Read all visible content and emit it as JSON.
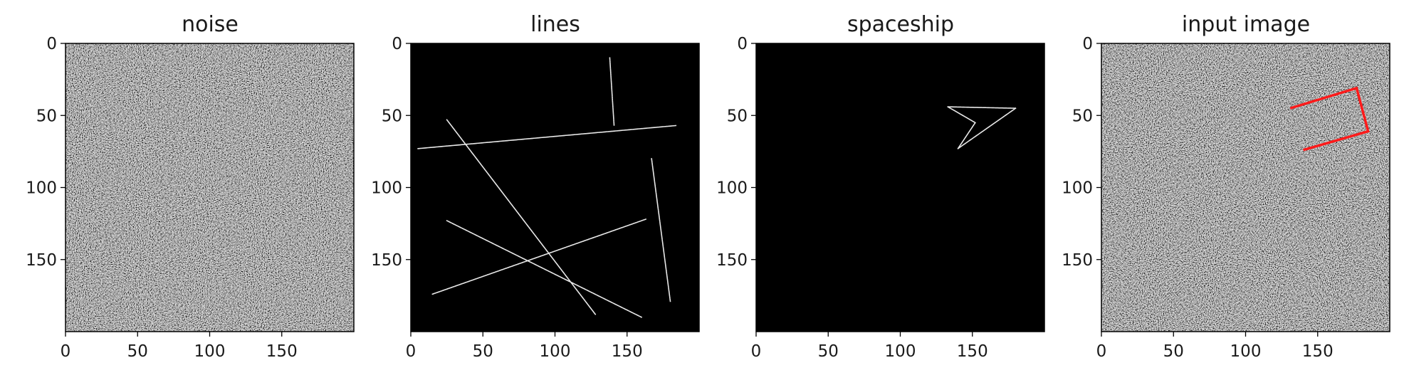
{
  "chart_data": [
    {
      "type": "heatmap",
      "title": "noise",
      "image": "random-gray-noise",
      "xlim": [
        0,
        200
      ],
      "ylim": [
        200,
        0
      ],
      "xticks": [
        0,
        50,
        100,
        150
      ],
      "yticks": [
        0,
        50,
        100,
        150
      ],
      "segments": [],
      "overlay": []
    },
    {
      "type": "heatmap",
      "title": "lines",
      "image": "black-with-white-lines",
      "xlim": [
        0,
        200
      ],
      "ylim": [
        200,
        0
      ],
      "xticks": [
        0,
        50,
        100,
        150
      ],
      "yticks": [
        0,
        50,
        100,
        150
      ],
      "segments": [
        [
          [
            138,
            10
          ],
          [
            141,
            57
          ]
        ],
        [
          [
            5,
            73
          ],
          [
            184,
            57
          ]
        ],
        [
          [
            25,
            53
          ],
          [
            128,
            188
          ]
        ],
        [
          [
            167,
            80
          ],
          [
            180,
            179
          ]
        ],
        [
          [
            25,
            123
          ],
          [
            160,
            190
          ]
        ],
        [
          [
            15,
            174
          ],
          [
            163,
            122
          ]
        ]
      ],
      "overlay": []
    },
    {
      "type": "heatmap",
      "title": "spaceship",
      "image": "black-with-white-outline",
      "xlim": [
        0,
        200
      ],
      "ylim": [
        200,
        0
      ],
      "xticks": [
        0,
        50,
        100,
        150
      ],
      "yticks": [
        0,
        50,
        100,
        150
      ],
      "segments": [
        [
          [
            133,
            44
          ],
          [
            180,
            45
          ]
        ],
        [
          [
            180,
            45
          ],
          [
            140,
            73
          ]
        ],
        [
          [
            140,
            73
          ],
          [
            152,
            55
          ]
        ],
        [
          [
            152,
            55
          ],
          [
            133,
            44
          ]
        ]
      ],
      "overlay": []
    },
    {
      "type": "heatmap",
      "title": "input image",
      "image": "random-gray-noise",
      "xlim": [
        0,
        200
      ],
      "ylim": [
        200,
        0
      ],
      "xticks": [
        0,
        50,
        100,
        150
      ],
      "yticks": [
        0,
        50,
        100,
        150
      ],
      "segments": [],
      "overlay": [
        [
          131,
          45
        ],
        [
          177,
          31
        ],
        [
          185,
          61
        ],
        [
          140,
          74
        ]
      ]
    }
  ],
  "colors": {
    "axes_frame": "#000000",
    "image_background": "#000000",
    "line_pixels": "#e8e8e8",
    "overlay": "#ff1a1a"
  }
}
